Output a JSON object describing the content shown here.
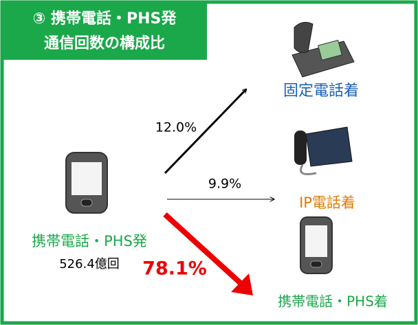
{
  "header": {
    "lines": [
      "③ 携帯電話・PHS発",
      "通信回数の構成比"
    ]
  },
  "source": {
    "label": "携帯電話・PHS発",
    "count": "526.4億回"
  },
  "flows": [
    {
      "share": "12.0%",
      "destination": "固定電話着"
    },
    {
      "share": "9.9%",
      "destination": "IP電話着"
    },
    {
      "share": "78.1%",
      "destination": "携帯電話・PHS着"
    }
  ]
}
